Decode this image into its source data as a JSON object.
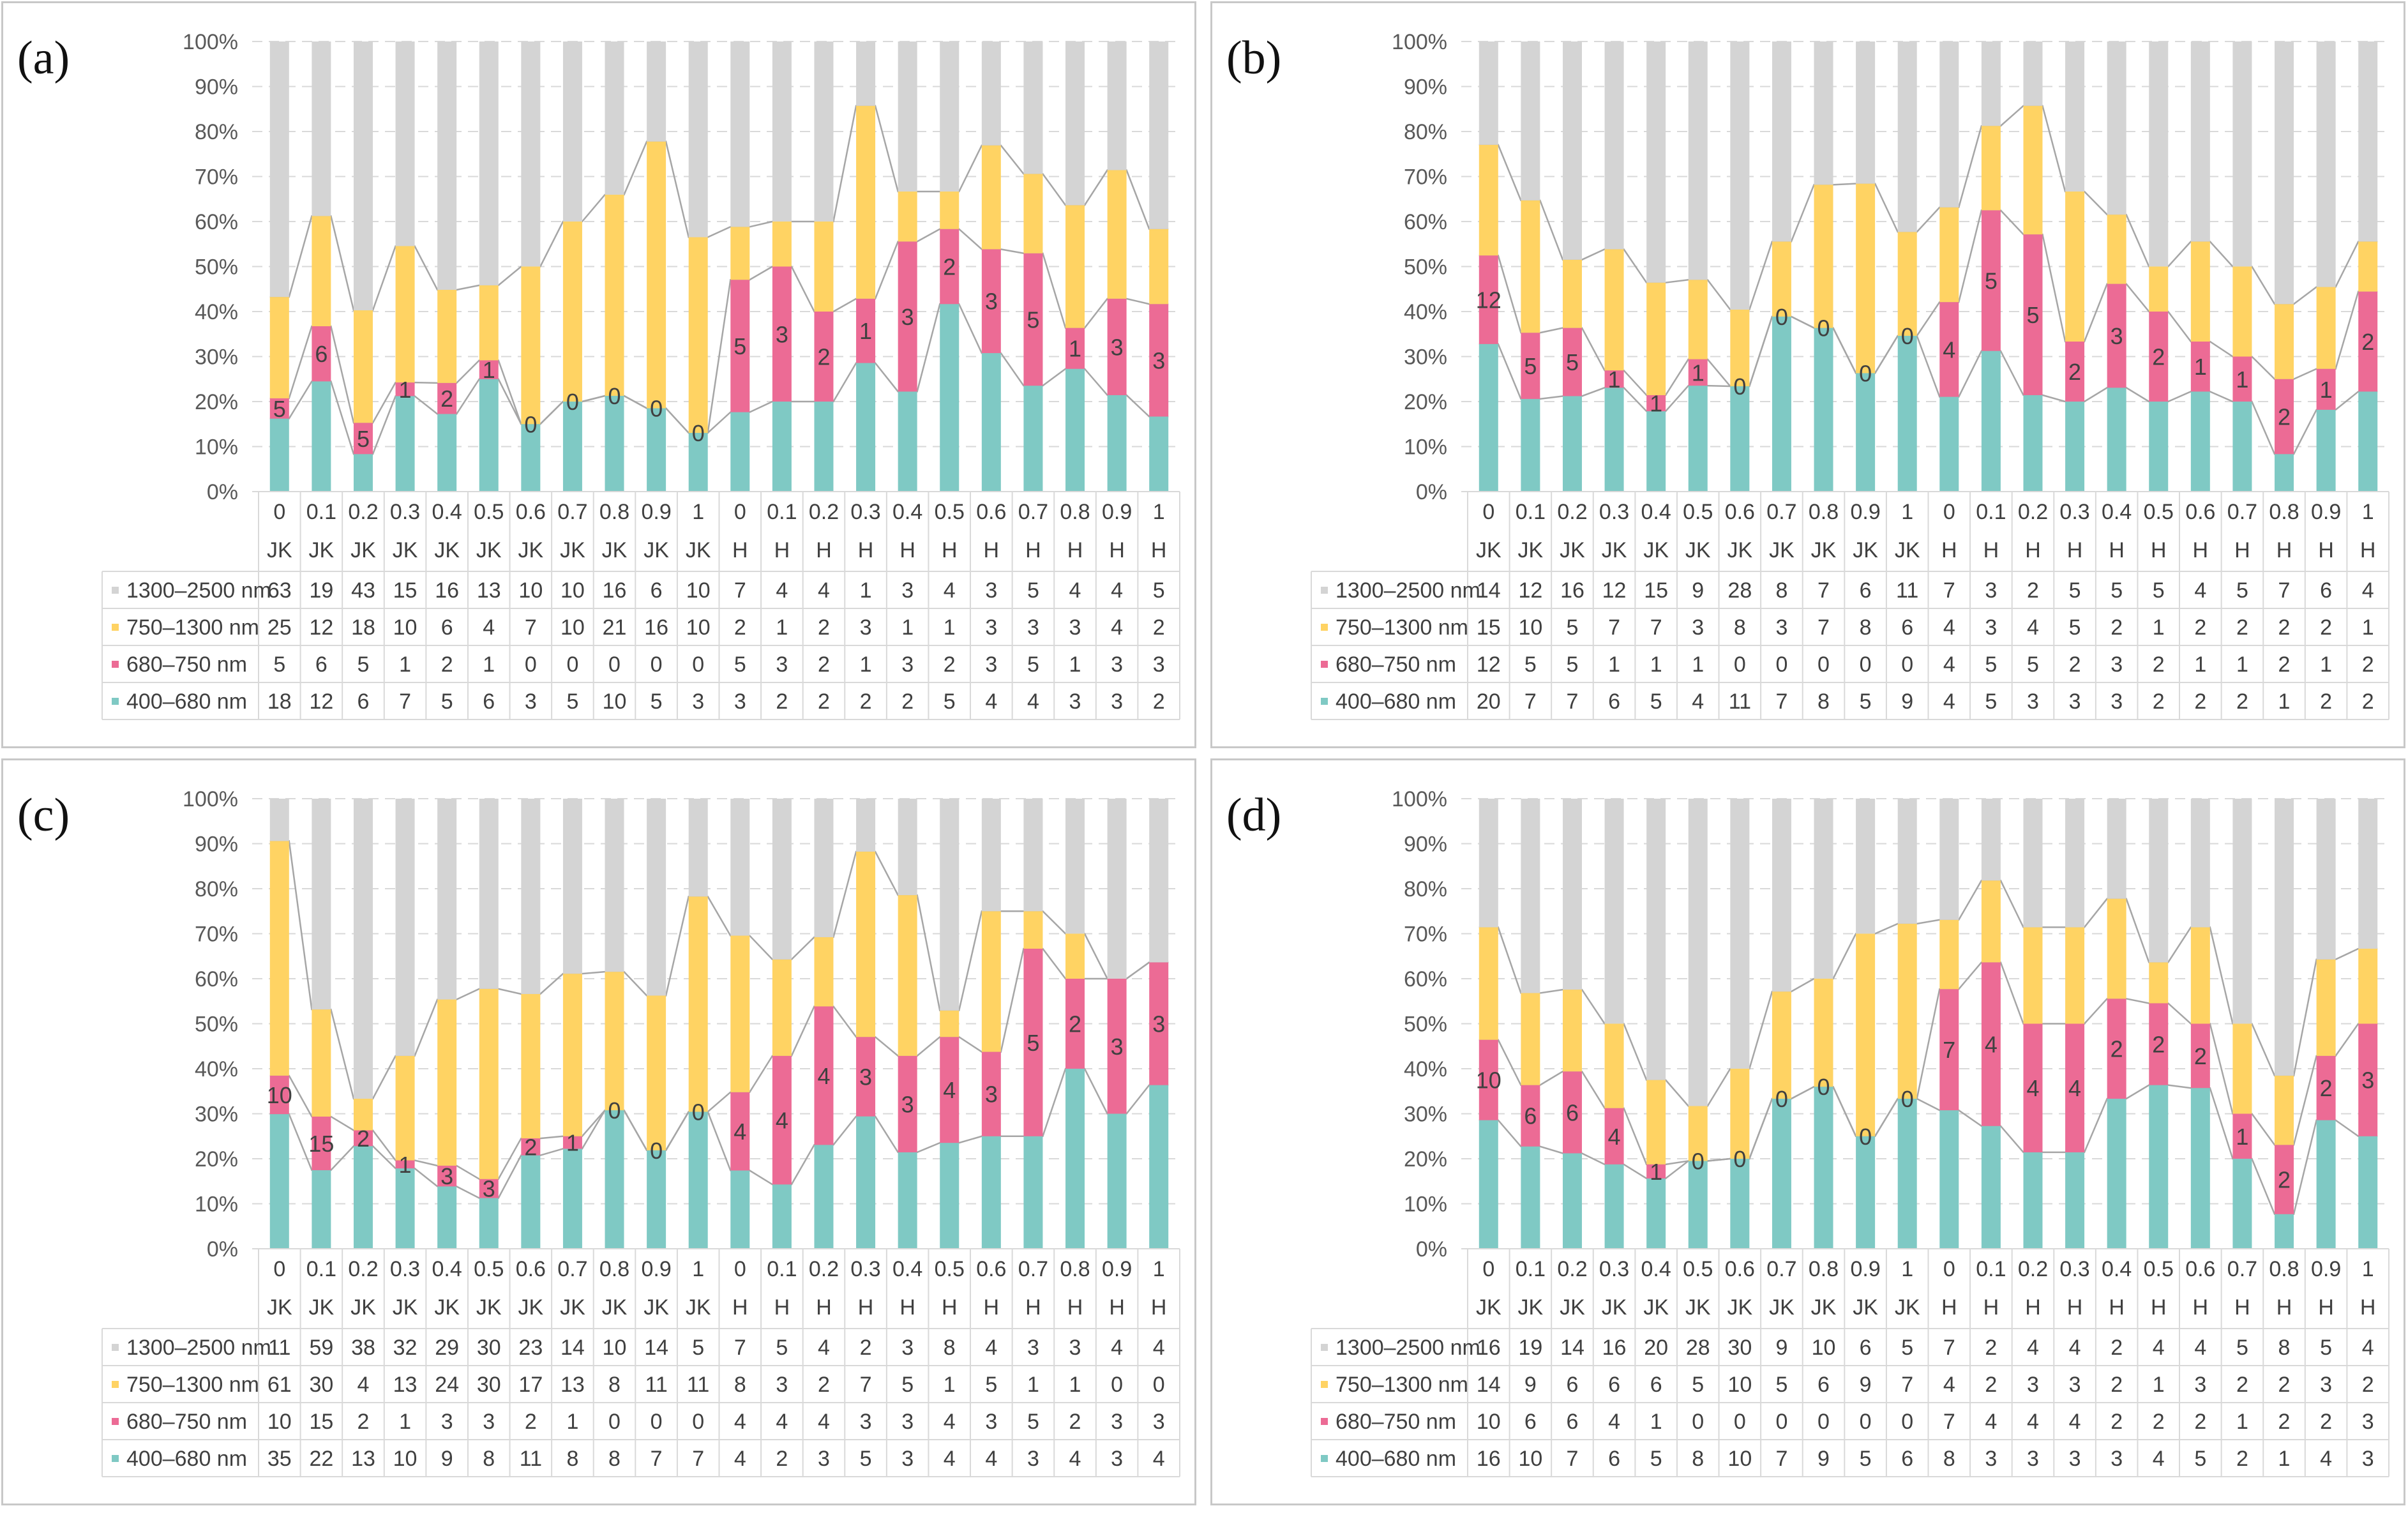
{
  "chart_data": [
    {
      "type": "bar",
      "panel_label": "(a)",
      "stacking": "percent",
      "y_ticks": [
        "0%",
        "10%",
        "20%",
        "30%",
        "40%",
        "50%",
        "60%",
        "70%",
        "80%",
        "90%",
        "100%"
      ],
      "categories": [
        "0",
        "0.1",
        "0.2",
        "0.3",
        "0.4",
        "0.5",
        "0.6",
        "0.7",
        "0.8",
        "0.9",
        "1",
        "0",
        "0.1",
        "0.2",
        "0.3",
        "0.4",
        "0.5",
        "0.6",
        "0.7",
        "0.8",
        "0.9",
        "1"
      ],
      "groups": [
        "JK",
        "JK",
        "JK",
        "JK",
        "JK",
        "JK",
        "JK",
        "JK",
        "JK",
        "JK",
        "JK",
        "H",
        "H",
        "H",
        "H",
        "H",
        "H",
        "H",
        "H",
        "H",
        "H",
        "H"
      ],
      "series": [
        {
          "name": "1300–2500 nm",
          "color": "#d4d4d4",
          "values": [
            63,
            19,
            43,
            15,
            16,
            13,
            10,
            10,
            16,
            6,
            10,
            7,
            4,
            4,
            1,
            3,
            4,
            3,
            5,
            4,
            4,
            5
          ]
        },
        {
          "name": "750–1300 nm",
          "color": "#ffd363",
          "values": [
            25,
            12,
            18,
            10,
            6,
            4,
            7,
            10,
            21,
            16,
            10,
            2,
            1,
            2,
            3,
            1,
            1,
            3,
            3,
            3,
            4,
            2
          ]
        },
        {
          "name": "680–750 nm",
          "color": "#ec6b95",
          "values": [
            5,
            6,
            5,
            1,
            2,
            1,
            0,
            0,
            0,
            0,
            0,
            5,
            3,
            2,
            1,
            3,
            2,
            3,
            5,
            1,
            3,
            3
          ]
        },
        {
          "name": "400–680 nm",
          "color": "#7fc9c4",
          "values": [
            18,
            12,
            6,
            7,
            5,
            6,
            3,
            5,
            10,
            5,
            3,
            3,
            2,
            2,
            2,
            2,
            5,
            4,
            4,
            3,
            3,
            2
          ]
        }
      ]
    },
    {
      "type": "bar",
      "panel_label": "(b)",
      "stacking": "percent",
      "y_ticks": [
        "0%",
        "10%",
        "20%",
        "30%",
        "40%",
        "50%",
        "60%",
        "70%",
        "80%",
        "90%",
        "100%"
      ],
      "categories": [
        "0",
        "0.1",
        "0.2",
        "0.3",
        "0.4",
        "0.5",
        "0.6",
        "0.7",
        "0.8",
        "0.9",
        "1",
        "0",
        "0.1",
        "0.2",
        "0.3",
        "0.4",
        "0.5",
        "0.6",
        "0.7",
        "0.8",
        "0.9",
        "1"
      ],
      "groups": [
        "JK",
        "JK",
        "JK",
        "JK",
        "JK",
        "JK",
        "JK",
        "JK",
        "JK",
        "JK",
        "JK",
        "H",
        "H",
        "H",
        "H",
        "H",
        "H",
        "H",
        "H",
        "H",
        "H",
        "H"
      ],
      "series": [
        {
          "name": "1300–2500 nm",
          "color": "#d4d4d4",
          "values": [
            14,
            12,
            16,
            12,
            15,
            9,
            28,
            8,
            7,
            6,
            11,
            7,
            3,
            2,
            5,
            5,
            5,
            4,
            5,
            7,
            6,
            4
          ]
        },
        {
          "name": "750–1300 nm",
          "color": "#ffd363",
          "values": [
            15,
            10,
            5,
            7,
            7,
            3,
            8,
            3,
            7,
            8,
            6,
            4,
            3,
            4,
            5,
            2,
            1,
            2,
            2,
            2,
            2,
            1
          ]
        },
        {
          "name": "680–750 nm",
          "color": "#ec6b95",
          "values": [
            12,
            5,
            5,
            1,
            1,
            1,
            0,
            0,
            0,
            0,
            0,
            4,
            5,
            5,
            2,
            3,
            2,
            1,
            1,
            2,
            1,
            2
          ]
        },
        {
          "name": "400–680 nm",
          "color": "#7fc9c4",
          "values": [
            20,
            7,
            7,
            6,
            5,
            4,
            11,
            7,
            8,
            5,
            9,
            4,
            5,
            3,
            3,
            3,
            2,
            2,
            2,
            1,
            2,
            2
          ]
        }
      ]
    },
    {
      "type": "bar",
      "panel_label": "(c)",
      "stacking": "percent",
      "y_ticks": [
        "0%",
        "10%",
        "20%",
        "30%",
        "40%",
        "50%",
        "60%",
        "70%",
        "80%",
        "90%",
        "100%"
      ],
      "categories": [
        "0",
        "0.1",
        "0.2",
        "0.3",
        "0.4",
        "0.5",
        "0.6",
        "0.7",
        "0.8",
        "0.9",
        "1",
        "0",
        "0.1",
        "0.2",
        "0.3",
        "0.4",
        "0.5",
        "0.6",
        "0.7",
        "0.8",
        "0.9",
        "1"
      ],
      "groups": [
        "JK",
        "JK",
        "JK",
        "JK",
        "JK",
        "JK",
        "JK",
        "JK",
        "JK",
        "JK",
        "JK",
        "H",
        "H",
        "H",
        "H",
        "H",
        "H",
        "H",
        "H",
        "H",
        "H",
        "H"
      ],
      "series": [
        {
          "name": "1300–2500 nm",
          "color": "#d4d4d4",
          "values": [
            11,
            59,
            38,
            32,
            29,
            30,
            23,
            14,
            10,
            14,
            5,
            7,
            5,
            4,
            2,
            3,
            8,
            4,
            3,
            3,
            4,
            4
          ]
        },
        {
          "name": "750–1300 nm",
          "color": "#ffd363",
          "values": [
            61,
            30,
            4,
            13,
            24,
            30,
            17,
            13,
            8,
            11,
            11,
            8,
            3,
            2,
            7,
            5,
            1,
            5,
            1,
            1,
            0,
            0
          ]
        },
        {
          "name": "680–750 nm",
          "color": "#ec6b95",
          "values": [
            10,
            15,
            2,
            1,
            3,
            3,
            2,
            1,
            0,
            0,
            0,
            4,
            4,
            4,
            3,
            3,
            4,
            3,
            5,
            2,
            3,
            3
          ]
        },
        {
          "name": "400–680 nm",
          "color": "#7fc9c4",
          "values": [
            35,
            22,
            13,
            10,
            9,
            8,
            11,
            8,
            8,
            7,
            7,
            4,
            2,
            3,
            5,
            3,
            4,
            4,
            3,
            4,
            3,
            4
          ]
        }
      ]
    },
    {
      "type": "bar",
      "panel_label": "(d)",
      "stacking": "percent",
      "y_ticks": [
        "0%",
        "10%",
        "20%",
        "30%",
        "40%",
        "50%",
        "60%",
        "70%",
        "80%",
        "90%",
        "100%"
      ],
      "categories": [
        "0",
        "0.1",
        "0.2",
        "0.3",
        "0.4",
        "0.5",
        "0.6",
        "0.7",
        "0.8",
        "0.9",
        "1",
        "0",
        "0.1",
        "0.2",
        "0.3",
        "0.4",
        "0.5",
        "0.6",
        "0.7",
        "0.8",
        "0.9",
        "1"
      ],
      "groups": [
        "JK",
        "JK",
        "JK",
        "JK",
        "JK",
        "JK",
        "JK",
        "JK",
        "JK",
        "JK",
        "JK",
        "H",
        "H",
        "H",
        "H",
        "H",
        "H",
        "H",
        "H",
        "H",
        "H",
        "H"
      ],
      "series": [
        {
          "name": "1300–2500 nm",
          "color": "#d4d4d4",
          "values": [
            16,
            19,
            14,
            16,
            20,
            28,
            30,
            9,
            10,
            6,
            5,
            7,
            2,
            4,
            4,
            2,
            4,
            4,
            5,
            8,
            5,
            4
          ]
        },
        {
          "name": "750–1300 nm",
          "color": "#ffd363",
          "values": [
            14,
            9,
            6,
            6,
            6,
            5,
            10,
            5,
            6,
            9,
            7,
            4,
            2,
            3,
            3,
            2,
            1,
            3,
            2,
            2,
            3,
            2
          ]
        },
        {
          "name": "680–750 nm",
          "color": "#ec6b95",
          "values": [
            10,
            6,
            6,
            4,
            1,
            0,
            0,
            0,
            0,
            0,
            0,
            7,
            4,
            4,
            4,
            2,
            2,
            2,
            1,
            2,
            2,
            3
          ]
        },
        {
          "name": "400–680 nm",
          "color": "#7fc9c4",
          "values": [
            16,
            10,
            7,
            6,
            5,
            8,
            10,
            7,
            9,
            5,
            6,
            8,
            3,
            3,
            3,
            3,
            4,
            5,
            2,
            1,
            4,
            3
          ]
        }
      ]
    }
  ]
}
